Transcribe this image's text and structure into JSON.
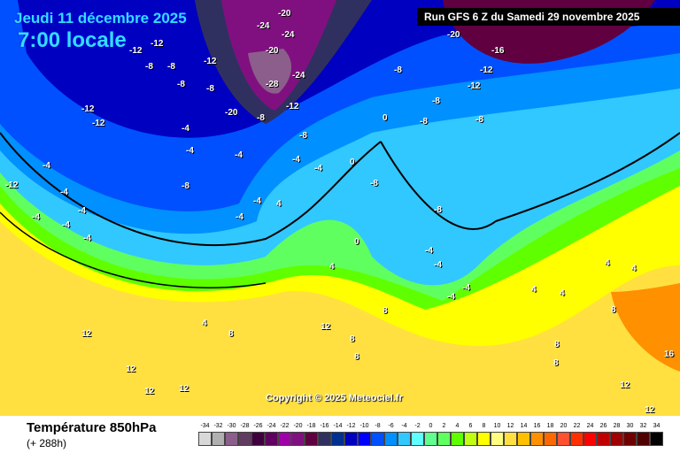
{
  "header": {
    "date": "Jeudi 11 décembre 2025",
    "hour": "7:00 locale",
    "run": "Run GFS 6 Z du Samedi 29 novembre 2025"
  },
  "copyright": "Copyright © 2025 Meteociel.fr",
  "footer": {
    "title": "Température 850hPa",
    "subtitle": "(+ 288h)"
  },
  "scale": {
    "values": [
      -34,
      -32,
      -30,
      -28,
      -26,
      -24,
      -22,
      -20,
      -18,
      -16,
      -14,
      -12,
      -10,
      -8,
      -6,
      -4,
      -2,
      0,
      2,
      4,
      6,
      8,
      10,
      12,
      14,
      16,
      18,
      20,
      22,
      24,
      26,
      28,
      30,
      32,
      34
    ],
    "colors": [
      "#d8d8d8",
      "#b0b0b0",
      "#8c5e8c",
      "#603c60",
      "#400040",
      "#600060",
      "#a000a8",
      "#801080",
      "#600040",
      "#303060",
      "#003090",
      "#0000c0",
      "#0000ff",
      "#0050ff",
      "#0090ff",
      "#30c8ff",
      "#60ffff",
      "#60ff90",
      "#60ff60",
      "#60ff00",
      "#c0ff10",
      "#ffff00",
      "#ffff80",
      "#ffe040",
      "#ffc000",
      "#ff9000",
      "#ff6800",
      "#ff5030",
      "#ff3000",
      "#ff0000",
      "#c00000",
      "#a00000",
      "#700000",
      "#500000",
      "#000000"
    ]
  },
  "isotherm_labels": [
    "-24",
    "-20",
    "-24",
    "-12",
    "-12",
    "-8",
    "-8",
    "-12",
    "-8",
    "-8",
    "-20",
    "-24",
    "-28",
    "-12",
    "-20",
    "-8",
    "-12",
    "-12",
    "-4",
    "-4",
    "-8",
    "-4",
    "-4",
    "-4",
    "-4",
    "-4",
    "-4",
    "-8",
    "-4",
    "-4",
    "0",
    "0",
    "-8",
    "-8",
    "-8",
    "-20",
    "-16",
    "-12",
    "-12",
    "-8",
    "-8",
    "-8",
    "-4",
    "4",
    "4",
    "0",
    "-4",
    "-4",
    "-4",
    "-4",
    "4",
    "4",
    "4",
    "4",
    "4",
    "8",
    "8",
    "8",
    "8",
    "12",
    "12",
    "12",
    "12",
    "12",
    "8",
    "8",
    "8",
    "12",
    "16",
    "12",
    "-12",
    "-4",
    "-4"
  ]
}
